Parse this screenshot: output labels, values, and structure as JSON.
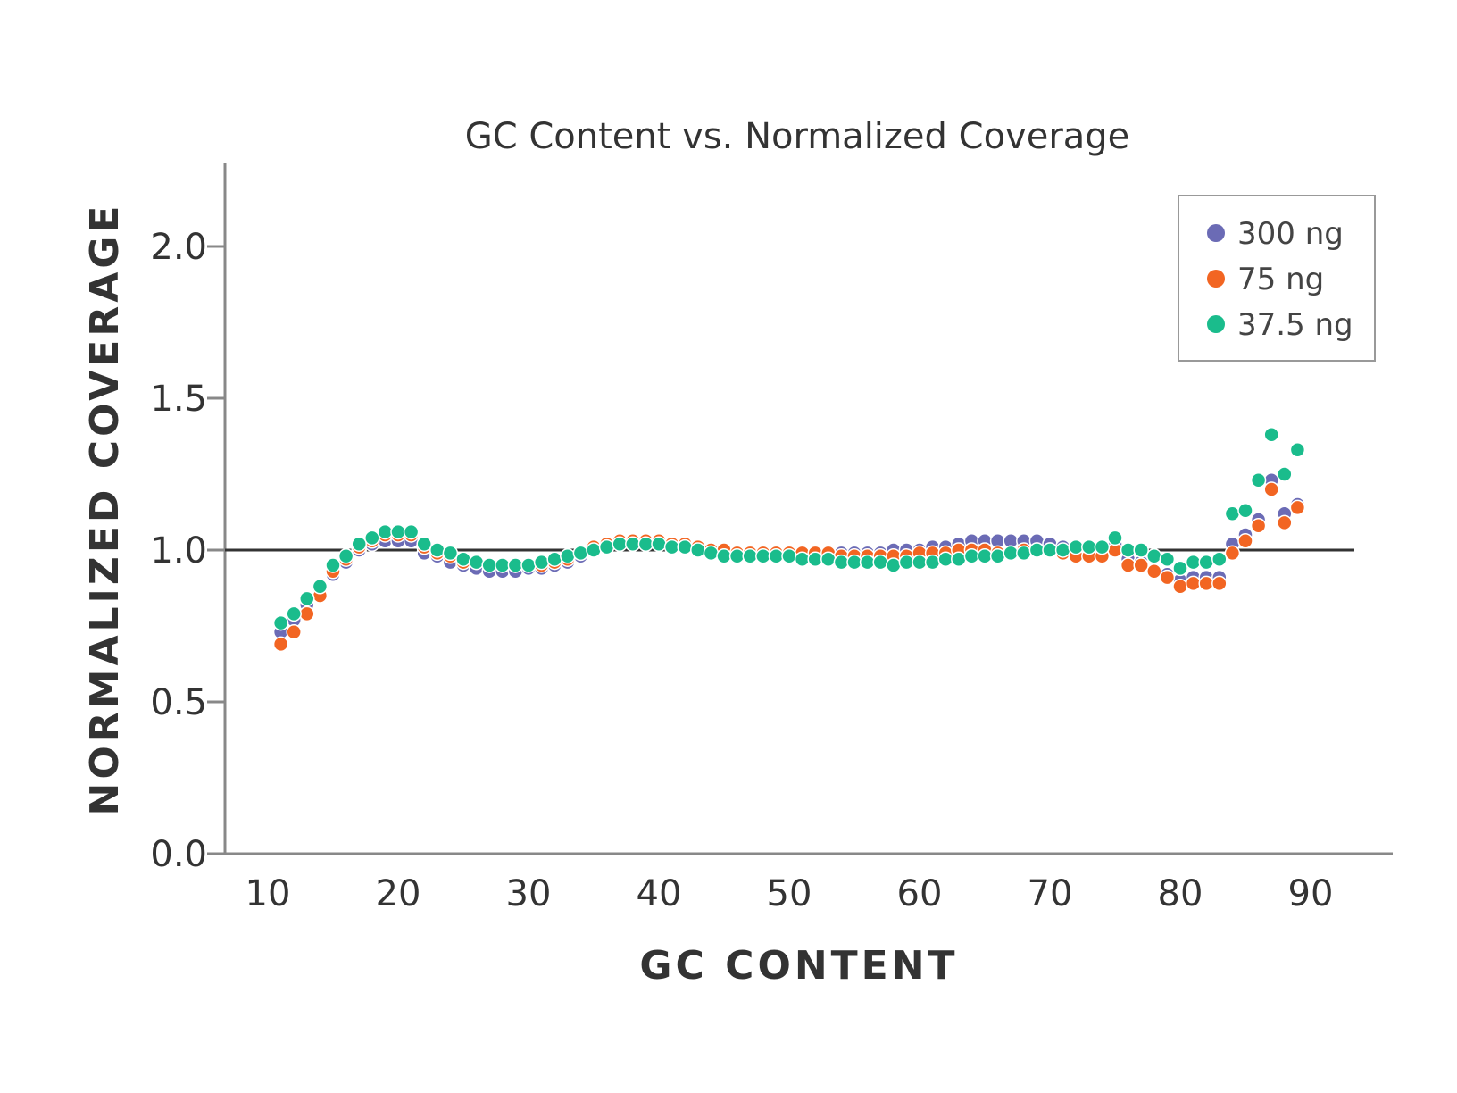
{
  "chart_data": {
    "type": "scatter",
    "title": "GC Content vs. Normalized Coverage",
    "xlabel": "GC CONTENT",
    "ylabel": "NORMALIZED COVERAGE",
    "xlim": [
      7,
      94
    ],
    "ylim": [
      0,
      2.25
    ],
    "xticks": [
      "10",
      "20",
      "30",
      "40",
      "50",
      "60",
      "70",
      "80",
      "90"
    ],
    "yticks": [
      "0.0",
      "0.5",
      "1.0",
      "1.5",
      "2.0"
    ],
    "reference_line": 1.0,
    "legend_position": "top-right",
    "x": [
      11,
      12,
      13,
      14,
      15,
      16,
      17,
      18,
      19,
      20,
      21,
      22,
      23,
      24,
      25,
      26,
      27,
      28,
      29,
      30,
      31,
      32,
      33,
      34,
      35,
      36,
      37,
      38,
      39,
      40,
      41,
      42,
      43,
      44,
      45,
      46,
      47,
      48,
      49,
      50,
      51,
      52,
      53,
      54,
      55,
      56,
      57,
      58,
      59,
      60,
      61,
      62,
      63,
      64,
      65,
      66,
      67,
      68,
      69,
      70,
      71,
      72,
      73,
      74,
      75,
      76,
      77,
      78,
      79,
      80,
      81,
      82,
      83,
      84,
      85,
      86,
      87,
      88,
      89
    ],
    "series": [
      {
        "name": "300 ng",
        "color": "#6b6bb5",
        "values": [
          0.73,
          0.77,
          0.82,
          0.86,
          0.92,
          0.96,
          1.0,
          1.02,
          1.03,
          1.03,
          1.03,
          0.99,
          0.98,
          0.96,
          0.95,
          0.94,
          0.93,
          0.93,
          0.93,
          0.94,
          0.94,
          0.95,
          0.96,
          0.98,
          1.0,
          1.01,
          1.02,
          1.02,
          1.02,
          1.02,
          1.01,
          1.01,
          1.0,
          0.99,
          0.99,
          0.99,
          0.99,
          0.99,
          0.99,
          0.99,
          0.99,
          0.99,
          0.99,
          0.99,
          0.99,
          0.99,
          0.99,
          1.0,
          1.0,
          1.0,
          1.01,
          1.01,
          1.02,
          1.03,
          1.03,
          1.03,
          1.03,
          1.03,
          1.03,
          1.02,
          1.01,
          1.0,
          1.0,
          1.0,
          1.02,
          0.97,
          0.96,
          0.93,
          0.92,
          0.9,
          0.91,
          0.91,
          0.91,
          1.02,
          1.05,
          1.1,
          1.23,
          1.12,
          1.15
        ]
      },
      {
        "name": "75 ng",
        "color": "#f26522",
        "values": [
          0.69,
          0.73,
          0.79,
          0.85,
          0.93,
          0.97,
          1.01,
          1.03,
          1.05,
          1.05,
          1.05,
          1.01,
          0.99,
          0.98,
          0.96,
          0.96,
          0.95,
          0.95,
          0.95,
          0.95,
          0.95,
          0.96,
          0.97,
          0.99,
          1.01,
          1.02,
          1.03,
          1.03,
          1.03,
          1.03,
          1.02,
          1.02,
          1.01,
          1.0,
          1.0,
          0.99,
          0.99,
          0.99,
          0.99,
          0.99,
          0.99,
          0.99,
          0.99,
          0.98,
          0.98,
          0.98,
          0.98,
          0.98,
          0.98,
          0.99,
          0.99,
          0.99,
          1.0,
          1.0,
          1.0,
          0.99,
          0.99,
          1.0,
          1.0,
          1.0,
          0.99,
          0.98,
          0.98,
          0.98,
          1.0,
          0.95,
          0.95,
          0.93,
          0.91,
          0.88,
          0.89,
          0.89,
          0.89,
          0.99,
          1.03,
          1.08,
          1.2,
          1.09,
          1.14
        ]
      },
      {
        "name": "37.5 ng",
        "color": "#1abc8c",
        "values": [
          0.76,
          0.79,
          0.84,
          0.88,
          0.95,
          0.98,
          1.02,
          1.04,
          1.06,
          1.06,
          1.06,
          1.02,
          1.0,
          0.99,
          0.97,
          0.96,
          0.95,
          0.95,
          0.95,
          0.95,
          0.96,
          0.97,
          0.98,
          0.99,
          1.0,
          1.01,
          1.02,
          1.02,
          1.02,
          1.02,
          1.01,
          1.01,
          1.0,
          0.99,
          0.98,
          0.98,
          0.98,
          0.98,
          0.98,
          0.98,
          0.97,
          0.97,
          0.97,
          0.96,
          0.96,
          0.96,
          0.96,
          0.95,
          0.96,
          0.96,
          0.96,
          0.97,
          0.97,
          0.98,
          0.98,
          0.98,
          0.99,
          0.99,
          1.0,
          1.0,
          1.0,
          1.01,
          1.01,
          1.01,
          1.04,
          1.0,
          1.0,
          0.98,
          0.97,
          0.94,
          0.96,
          0.96,
          0.97,
          1.12,
          1.13,
          1.23,
          1.38,
          1.25,
          1.33
        ]
      }
    ]
  }
}
